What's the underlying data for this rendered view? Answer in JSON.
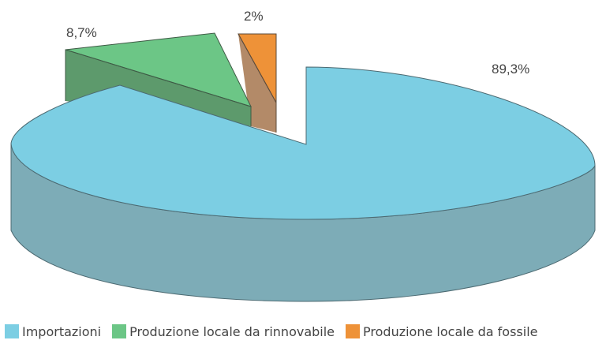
{
  "chart_data": {
    "type": "pie",
    "style": "3d-exploded",
    "categories": [
      "Importazioni",
      "Produzione locale da rinnovabile",
      "Produzione locale da fossile"
    ],
    "values": [
      89.3,
      8.7,
      2
    ],
    "data_labels": [
      "89,3%",
      "8,7%",
      "2%"
    ],
    "colors": [
      "#7ccee3",
      "#6cc686",
      "#ee9238"
    ],
    "side_colors": [
      "#7dacb7",
      "#5d9a6c",
      "#b38a68"
    ],
    "title": "",
    "legend_position": "bottom"
  }
}
